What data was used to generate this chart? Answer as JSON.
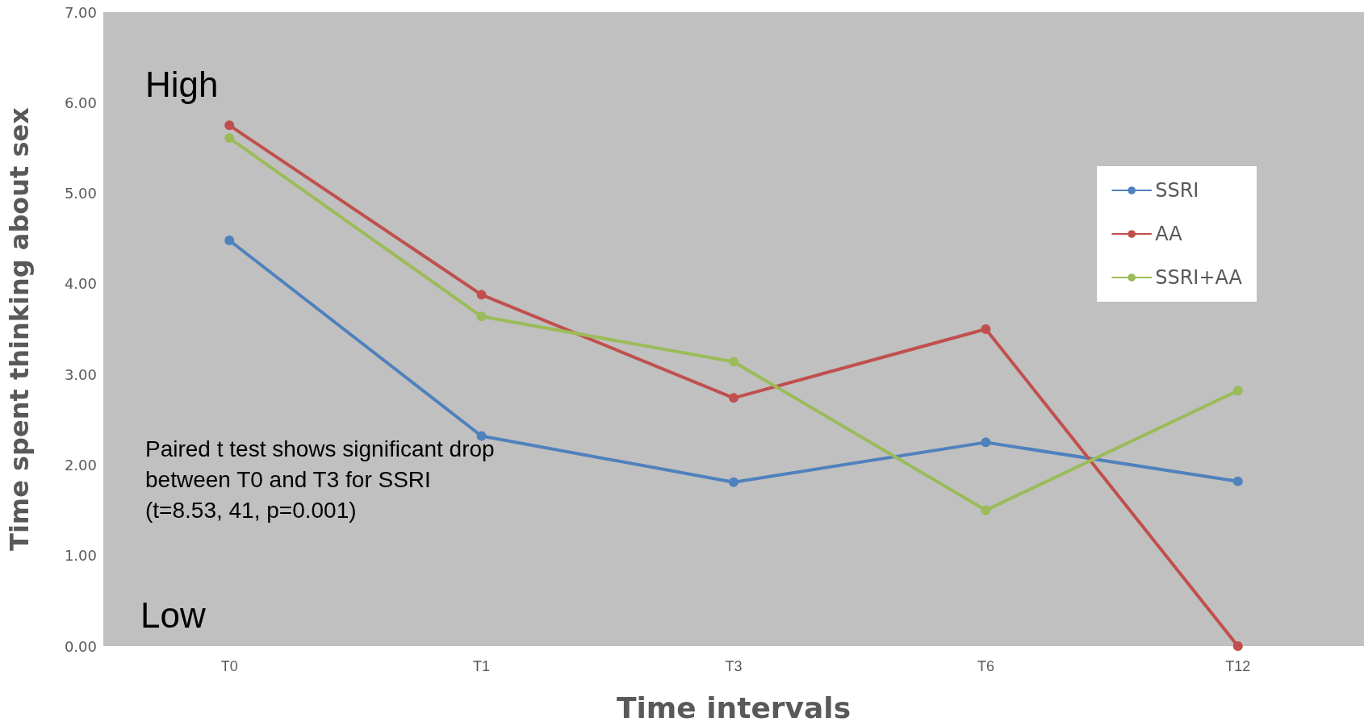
{
  "chart_data": {
    "type": "line",
    "xlabel": "Time intervals",
    "ylabel": "Time spent thinking about sex",
    "categories": [
      "T0",
      "T1",
      "T3",
      "T6",
      "T12"
    ],
    "series": [
      {
        "name": "SSRI",
        "color": "#4f81bd",
        "values": [
          4.48,
          2.32,
          1.81,
          2.25,
          1.82
        ]
      },
      {
        "name": "AA",
        "color": "#c0504d",
        "values": [
          5.75,
          3.88,
          2.74,
          3.5,
          0
        ]
      },
      {
        "name": "SSRI+AA",
        "color": "#9bbb59",
        "values": [
          5.61,
          3.64,
          3.14,
          1.5,
          2.82
        ]
      }
    ],
    "ylim": [
      0,
      7
    ],
    "yticks": [
      {
        "value": 0,
        "label": "0.00"
      },
      {
        "value": 1,
        "label": "1.00"
      },
      {
        "value": 2,
        "label": "2.00"
      },
      {
        "value": 3,
        "label": "3.00"
      },
      {
        "value": 4,
        "label": "4.00"
      },
      {
        "value": 5,
        "label": "5.00"
      },
      {
        "value": 6,
        "label": "6.00"
      },
      {
        "value": 7,
        "label": "7.00"
      }
    ],
    "annotations": [
      "High",
      "Low",
      "Paired t test shows significant drop\nbetween T0 and T3 for SSRI\n(t=8.53, 41, p=0.001)"
    ],
    "grid": false,
    "legend": "top right",
    "marker": "circle",
    "line_style": "solid"
  }
}
